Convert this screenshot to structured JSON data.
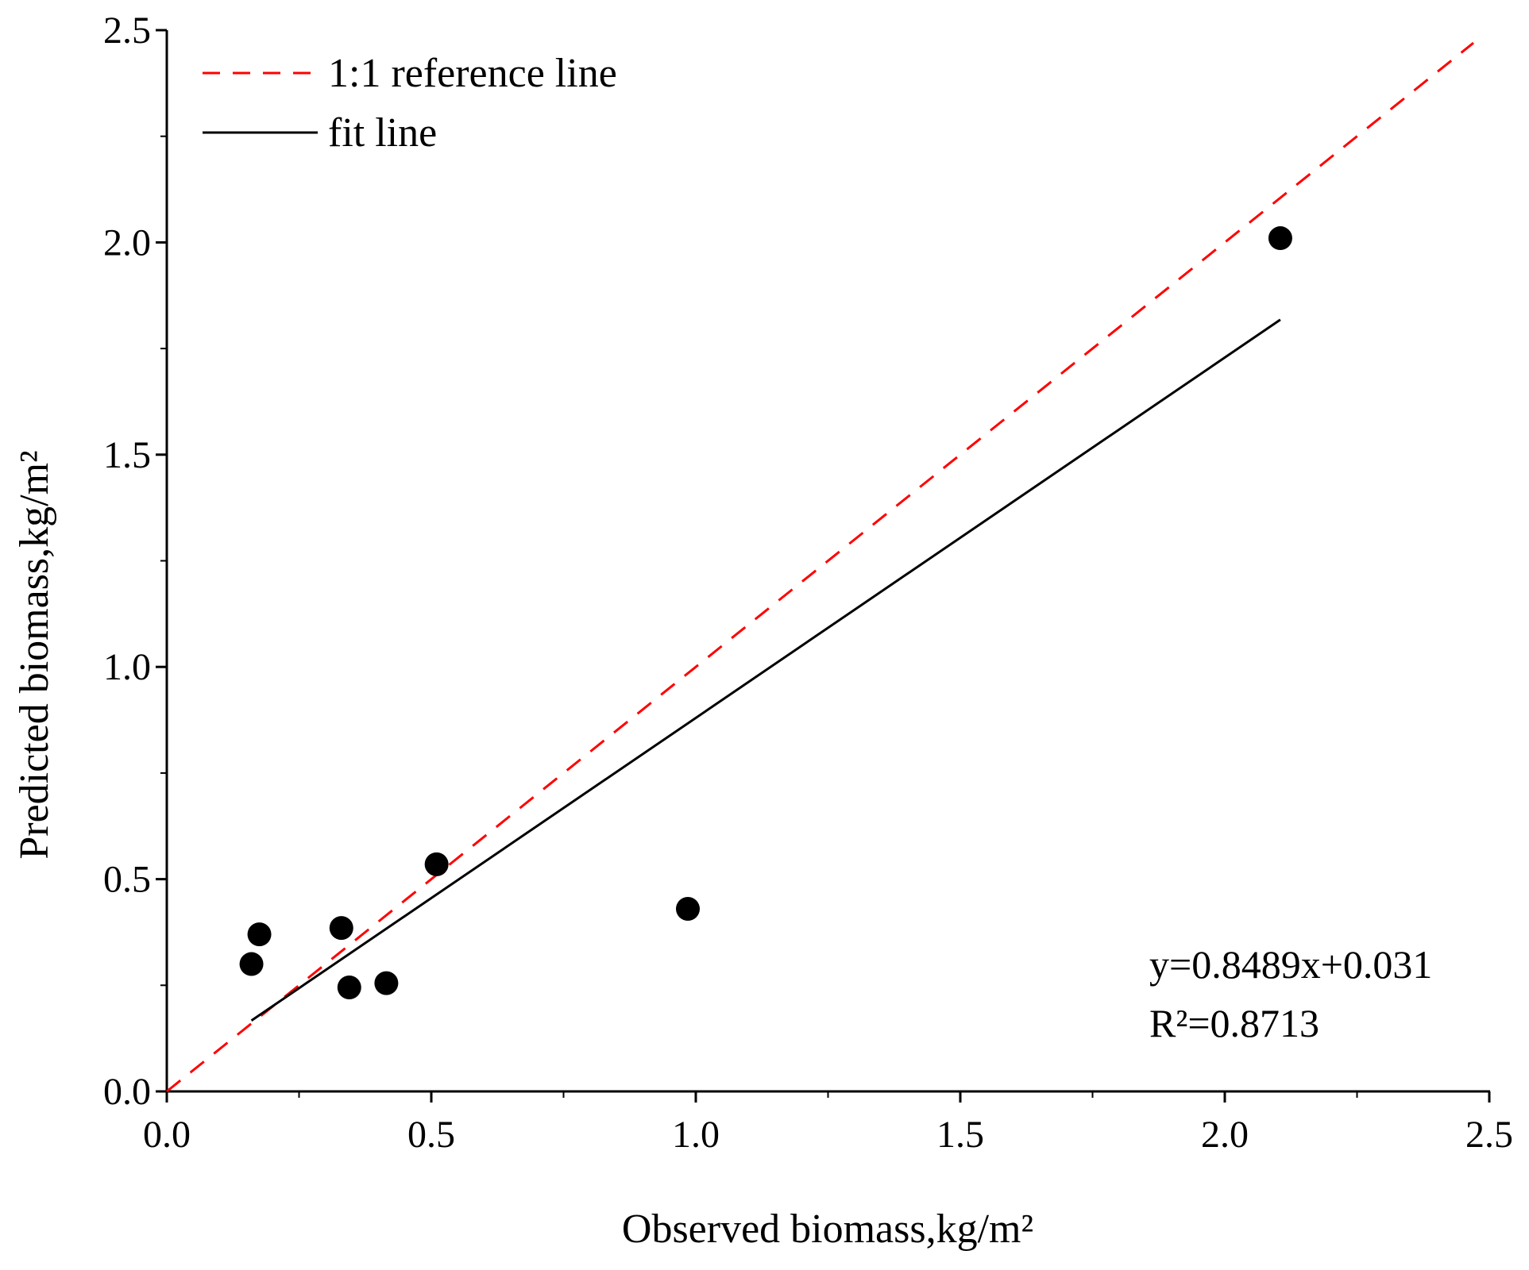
{
  "chart_data": {
    "type": "scatter",
    "title": "",
    "xlabel": "Observed biomass,kg/m²",
    "ylabel": "Predicted biomass,kg/m²",
    "xlim": [
      0.0,
      2.5
    ],
    "ylim": [
      0.0,
      2.5
    ],
    "x_ticks": [
      "0.0",
      "0.5",
      "1.0",
      "1.5",
      "2.0",
      "2.5"
    ],
    "y_ticks": [
      "0.0",
      "0.5",
      "1.0",
      "1.5",
      "2.0",
      "2.5"
    ],
    "grid": false,
    "legend_position": "top-left",
    "legend": [
      {
        "label": "1:1 reference line",
        "style": "dashed",
        "color": "#ff0000"
      },
      {
        "label": "fit line",
        "style": "solid",
        "color": "#000000"
      }
    ],
    "points": [
      {
        "x": 0.16,
        "y": 0.3
      },
      {
        "x": 0.175,
        "y": 0.37
      },
      {
        "x": 0.33,
        "y": 0.385
      },
      {
        "x": 0.345,
        "y": 0.245
      },
      {
        "x": 0.415,
        "y": 0.255
      },
      {
        "x": 0.51,
        "y": 0.535
      },
      {
        "x": 0.985,
        "y": 0.43
      },
      {
        "x": 2.105,
        "y": 2.01
      }
    ],
    "point_color": "#000000",
    "reference_line": {
      "x": [
        0.0,
        2.5
      ],
      "y": [
        0.0,
        2.5
      ]
    },
    "fit_line": {
      "slope": 0.8489,
      "intercept": 0.031,
      "x": [
        0.16,
        2.105
      ]
    },
    "annotations": {
      "equation": "y=0.8489x+0.031",
      "r_squared": "R²=0.8713"
    }
  }
}
